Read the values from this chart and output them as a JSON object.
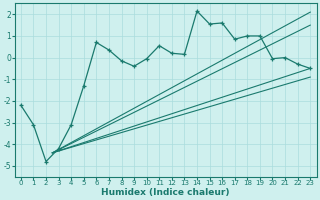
{
  "xlabel": "Humidex (Indice chaleur)",
  "bg_color": "#cff0ee",
  "grid_color": "#aadddd",
  "line_color": "#1a7a6e",
  "xlim": [
    -0.5,
    23.5
  ],
  "ylim": [
    -5.5,
    2.5
  ],
  "xticks": [
    0,
    1,
    2,
    3,
    4,
    5,
    6,
    7,
    8,
    9,
    10,
    11,
    12,
    13,
    14,
    15,
    16,
    17,
    18,
    19,
    20,
    21,
    22,
    23
  ],
  "yticks": [
    -5,
    -4,
    -3,
    -2,
    -1,
    0,
    1,
    2
  ],
  "main_x": [
    0,
    1,
    2,
    3,
    4,
    5,
    6,
    7,
    8,
    9,
    10,
    11,
    12,
    13,
    14,
    15,
    16,
    17,
    18,
    19,
    20,
    21,
    22,
    23
  ],
  "main_y": [
    -2.2,
    -3.1,
    -4.8,
    -4.2,
    -3.1,
    -1.3,
    0.7,
    0.35,
    -0.15,
    -0.4,
    -0.05,
    0.55,
    0.2,
    0.15,
    2.15,
    1.55,
    1.6,
    0.85,
    1.0,
    1.0,
    -0.05,
    0.0,
    -0.3,
    -0.5
  ],
  "reg_lines": [
    {
      "x0": 2.5,
      "y0": -4.4,
      "x1": 23,
      "y1": -0.5
    },
    {
      "x0": 2.5,
      "y0": -4.4,
      "x1": 23,
      "y1": -0.9
    },
    {
      "x0": 2.5,
      "y0": -4.4,
      "x1": 23,
      "y1": 1.5
    },
    {
      "x0": 2.5,
      "y0": -4.4,
      "x1": 23,
      "y1": 2.1
    }
  ]
}
